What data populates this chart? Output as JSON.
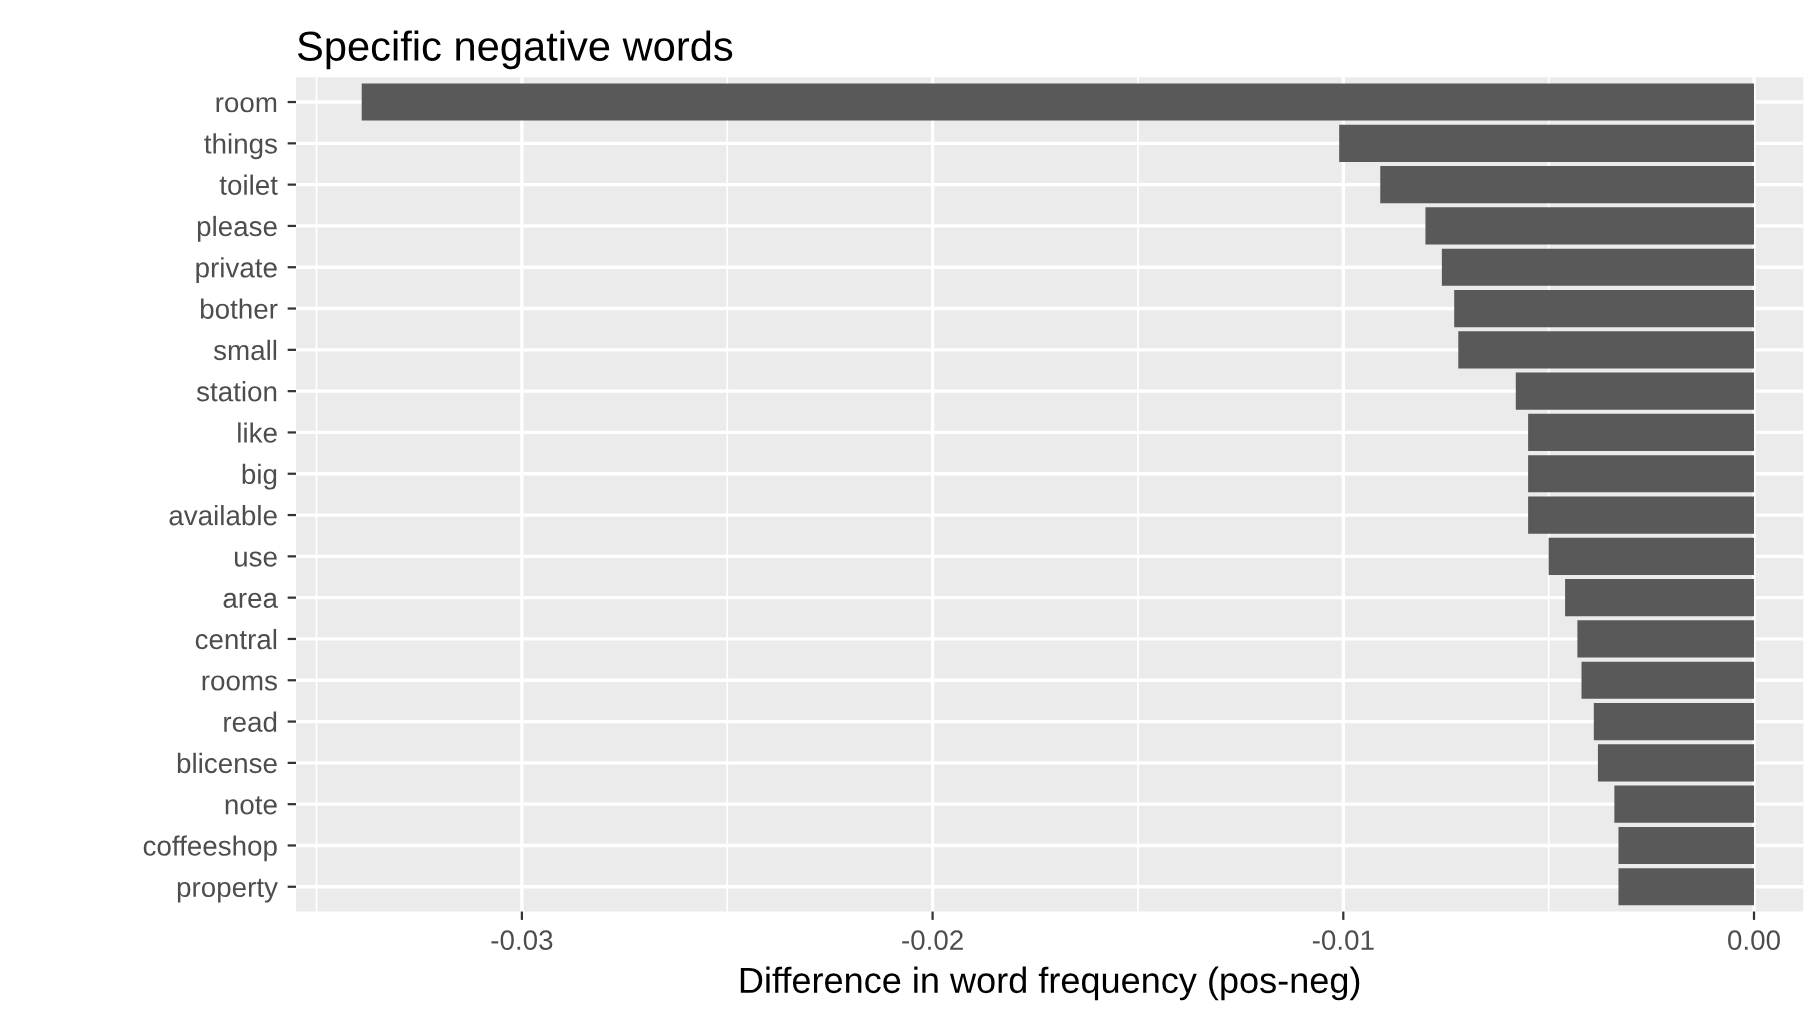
{
  "chart_data": {
    "type": "bar",
    "orientation": "horizontal",
    "title": "Specific negative words",
    "xlabel": "Difference in word frequency (pos-neg)",
    "categories": [
      "room",
      "things",
      "toilet",
      "please",
      "private",
      "bother",
      "small",
      "station",
      "like",
      "big",
      "available",
      "use",
      "area",
      "central",
      "rooms",
      "read",
      "blicense",
      "note",
      "coffeeshop",
      "property"
    ],
    "values": [
      -0.0339,
      -0.0101,
      -0.0091,
      -0.008,
      -0.0076,
      -0.0073,
      -0.0072,
      -0.0058,
      -0.0055,
      -0.0055,
      -0.0055,
      -0.005,
      -0.0046,
      -0.0043,
      -0.0042,
      -0.0039,
      -0.0038,
      -0.0034,
      -0.0033,
      -0.0033
    ],
    "color": "#595959",
    "xlim": [
      -0.0355,
      0.0012
    ],
    "xticks": [
      {
        "value": -0.03,
        "label": "-0.03"
      },
      {
        "value": -0.02,
        "label": "-0.02"
      },
      {
        "value": -0.01,
        "label": "-0.01"
      },
      {
        "value": 0,
        "label": "0.00"
      }
    ],
    "grid": true,
    "legend": false
  }
}
